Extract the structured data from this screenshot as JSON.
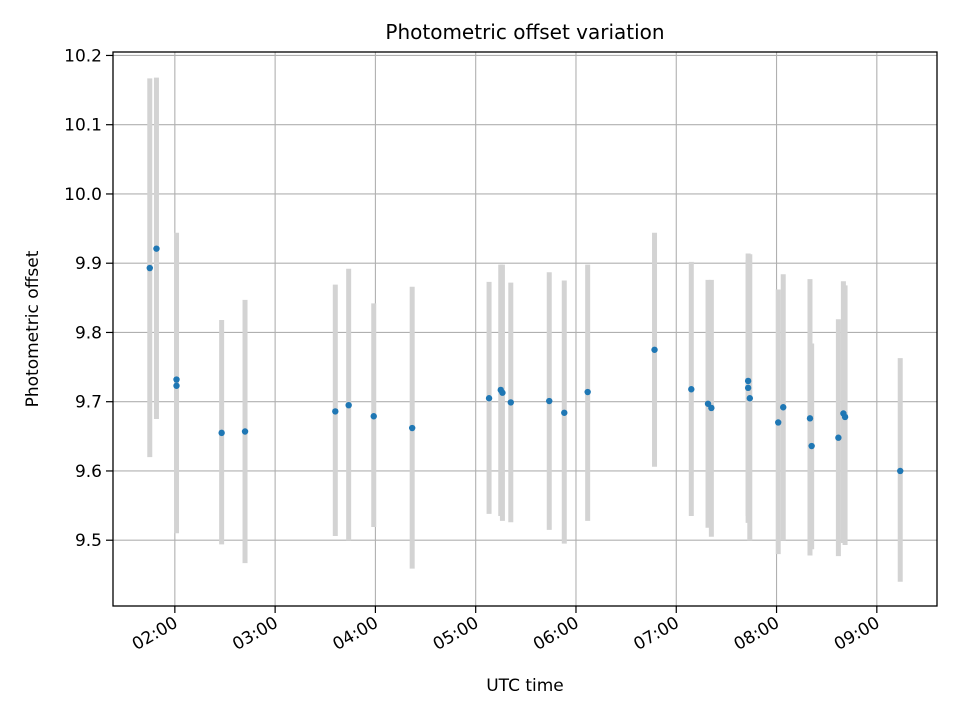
{
  "chart_data": {
    "type": "scatter",
    "title": "Photometric offset variation",
    "xlabel": "UTC time",
    "ylabel": "Photometric offset",
    "x_unit": "hours UTC",
    "xlim": [
      "01:23",
      "09:36"
    ],
    "ylim": [
      9.405,
      10.205
    ],
    "grid": true,
    "x_ticks": [
      "02:00",
      "03:00",
      "04:00",
      "05:00",
      "06:00",
      "07:00",
      "08:00",
      "09:00"
    ],
    "y_ticks": [
      "9.5",
      "9.6",
      "9.7",
      "9.8",
      "9.9",
      "10.0",
      "10.1",
      "10.2"
    ],
    "point_color": "#1f77b4",
    "errorbar_color": "#d3d3d3",
    "points": [
      {
        "x": "01:45",
        "y": 9.893,
        "lo": 9.62,
        "hi": 10.167
      },
      {
        "x": "01:49",
        "y": 9.921,
        "lo": 9.675,
        "hi": 10.168
      },
      {
        "x": "02:01",
        "y": 9.732,
        "lo": 9.528,
        "hi": 9.944
      },
      {
        "x": "02:01",
        "y": 9.723,
        "lo": 9.51,
        "hi": 9.938
      },
      {
        "x": "02:28",
        "y": 9.655,
        "lo": 9.494,
        "hi": 9.818
      },
      {
        "x": "02:42",
        "y": 9.657,
        "lo": 9.467,
        "hi": 9.847
      },
      {
        "x": "03:36",
        "y": 9.686,
        "lo": 9.506,
        "hi": 9.869
      },
      {
        "x": "03:44",
        "y": 9.695,
        "lo": 9.5,
        "hi": 9.892
      },
      {
        "x": "03:59",
        "y": 9.679,
        "lo": 9.519,
        "hi": 9.842
      },
      {
        "x": "04:22",
        "y": 9.662,
        "lo": 9.459,
        "hi": 9.866
      },
      {
        "x": "05:08",
        "y": 9.705,
        "lo": 9.538,
        "hi": 9.873
      },
      {
        "x": "05:15",
        "y": 9.717,
        "lo": 9.535,
        "hi": 9.898
      },
      {
        "x": "05:16",
        "y": 9.713,
        "lo": 9.528,
        "hi": 9.898
      },
      {
        "x": "05:21",
        "y": 9.699,
        "lo": 9.526,
        "hi": 9.872
      },
      {
        "x": "05:44",
        "y": 9.701,
        "lo": 9.515,
        "hi": 9.887
      },
      {
        "x": "05:53",
        "y": 9.684,
        "lo": 9.495,
        "hi": 9.875
      },
      {
        "x": "06:07",
        "y": 9.714,
        "lo": 9.528,
        "hi": 9.898
      },
      {
        "x": "06:47",
        "y": 9.775,
        "lo": 9.606,
        "hi": 9.944
      },
      {
        "x": "07:09",
        "y": 9.718,
        "lo": 9.535,
        "hi": 9.902
      },
      {
        "x": "07:19",
        "y": 9.697,
        "lo": 9.518,
        "hi": 9.876
      },
      {
        "x": "07:21",
        "y": 9.691,
        "lo": 9.505,
        "hi": 9.876
      },
      {
        "x": "07:43",
        "y": 9.73,
        "lo": 9.535,
        "hi": 9.914
      },
      {
        "x": "07:43",
        "y": 9.72,
        "lo": 9.525,
        "hi": 9.905
      },
      {
        "x": "07:44",
        "y": 9.705,
        "lo": 9.5,
        "hi": 9.913
      },
      {
        "x": "08:01",
        "y": 9.67,
        "lo": 9.48,
        "hi": 9.862
      },
      {
        "x": "08:04",
        "y": 9.692,
        "lo": 9.5,
        "hi": 9.884
      },
      {
        "x": "08:20",
        "y": 9.676,
        "lo": 9.478,
        "hi": 9.877
      },
      {
        "x": "08:21",
        "y": 9.636,
        "lo": 9.487,
        "hi": 9.784
      },
      {
        "x": "08:37",
        "y": 9.648,
        "lo": 9.477,
        "hi": 9.819
      },
      {
        "x": "08:40",
        "y": 9.683,
        "lo": 9.496,
        "hi": 9.874
      },
      {
        "x": "08:41",
        "y": 9.678,
        "lo": 9.493,
        "hi": 9.868
      },
      {
        "x": "09:14",
        "y": 9.6,
        "lo": 9.44,
        "hi": 9.763
      }
    ]
  }
}
